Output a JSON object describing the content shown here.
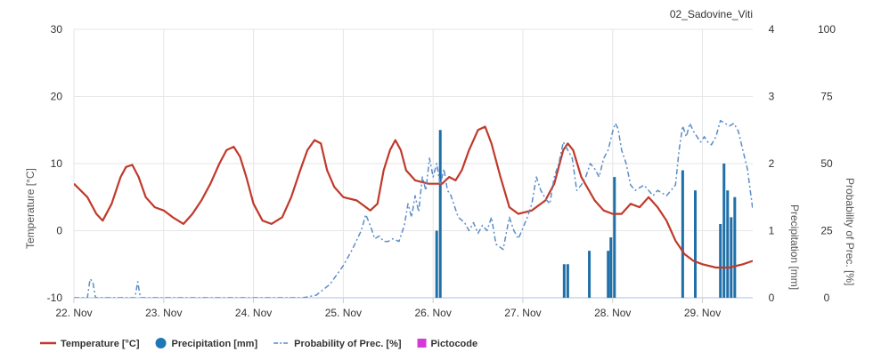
{
  "chart_data": {
    "type": "line",
    "title": "02_Sadovine_Viti",
    "x_categories": [
      "22. Nov",
      "23. Nov",
      "24. Nov",
      "25. Nov",
      "26. Nov",
      "27. Nov",
      "28. Nov",
      "29. Nov"
    ],
    "x_range_days": [
      0,
      7.56
    ],
    "axes": {
      "temperature": {
        "label": "Temperature [°C]",
        "range": [
          -10,
          30
        ],
        "ticks": [
          30,
          20,
          10,
          0,
          -10
        ]
      },
      "precipitation": {
        "label": "Precipitation [mm]",
        "range": [
          0,
          4
        ],
        "ticks": [
          4,
          3,
          2,
          1,
          0
        ]
      },
      "probability": {
        "label": "Probability of Prec. [%]",
        "range": [
          0,
          100
        ],
        "ticks": [
          100,
          75,
          50,
          25,
          0
        ]
      }
    },
    "grid": true,
    "legend": {
      "placement": "bottom-left",
      "entries": [
        {
          "label": "Temperature [°C]",
          "color": "#c0392b",
          "symbol": "line"
        },
        {
          "label": "Precipitation [mm]",
          "color": "#1f77b4",
          "symbol": "circle"
        },
        {
          "label": "Probability of Prec. [%]",
          "color": "#5b8cc8",
          "symbol": "dashdot"
        },
        {
          "label": "Pictocode",
          "color": "#d63ad6",
          "symbol": "square"
        }
      ]
    },
    "series": [
      {
        "name": "Temperature [°C]",
        "axis": "temperature",
        "color": "#c0392b",
        "points": [
          [
            0.0,
            7
          ],
          [
            0.15,
            5
          ],
          [
            0.25,
            2.5
          ],
          [
            0.32,
            1.5
          ],
          [
            0.42,
            4
          ],
          [
            0.52,
            8
          ],
          [
            0.58,
            9.5
          ],
          [
            0.65,
            9.8
          ],
          [
            0.72,
            8
          ],
          [
            0.8,
            5
          ],
          [
            0.9,
            3.5
          ],
          [
            1.0,
            3.0
          ],
          [
            1.1,
            2.0
          ],
          [
            1.22,
            1.0
          ],
          [
            1.32,
            2.5
          ],
          [
            1.42,
            4.5
          ],
          [
            1.52,
            7
          ],
          [
            1.62,
            10
          ],
          [
            1.7,
            12
          ],
          [
            1.78,
            12.5
          ],
          [
            1.85,
            11
          ],
          [
            1.92,
            8
          ],
          [
            2.0,
            4.0
          ],
          [
            2.1,
            1.5
          ],
          [
            2.2,
            1.0
          ],
          [
            2.32,
            2.0
          ],
          [
            2.42,
            5
          ],
          [
            2.52,
            9
          ],
          [
            2.6,
            12
          ],
          [
            2.68,
            13.5
          ],
          [
            2.75,
            13
          ],
          [
            2.82,
            9
          ],
          [
            2.9,
            6.5
          ],
          [
            3.0,
            5.0
          ],
          [
            3.15,
            4.5
          ],
          [
            3.3,
            3.0
          ],
          [
            3.38,
            4.0
          ],
          [
            3.45,
            9
          ],
          [
            3.52,
            12
          ],
          [
            3.58,
            13.5
          ],
          [
            3.64,
            12
          ],
          [
            3.7,
            9
          ],
          [
            3.8,
            7.5
          ],
          [
            3.95,
            7.0
          ],
          [
            4.1,
            7
          ],
          [
            4.18,
            8
          ],
          [
            4.25,
            7.5
          ],
          [
            4.32,
            9
          ],
          [
            4.4,
            12
          ],
          [
            4.5,
            15
          ],
          [
            4.58,
            15.5
          ],
          [
            4.65,
            13
          ],
          [
            4.75,
            8
          ],
          [
            4.85,
            3.5
          ],
          [
            4.95,
            2.5
          ],
          [
            5.1,
            3.0
          ],
          [
            5.25,
            4.5
          ],
          [
            5.35,
            7
          ],
          [
            5.45,
            12
          ],
          [
            5.5,
            13
          ],
          [
            5.56,
            12
          ],
          [
            5.65,
            8
          ],
          [
            5.8,
            4.5
          ],
          [
            5.9,
            3.0
          ],
          [
            6.0,
            2.5
          ],
          [
            6.1,
            2.5
          ],
          [
            6.2,
            4.0
          ],
          [
            6.3,
            3.5
          ],
          [
            6.4,
            5.0
          ],
          [
            6.5,
            3.5
          ],
          [
            6.6,
            1.5
          ],
          [
            6.7,
            -1.5
          ],
          [
            6.8,
            -3.5
          ],
          [
            6.9,
            -4.5
          ],
          [
            7.0,
            -5.0
          ],
          [
            7.15,
            -5.5
          ],
          [
            7.3,
            -5.5
          ],
          [
            7.45,
            -5.0
          ],
          [
            7.56,
            -4.5
          ]
        ]
      },
      {
        "name": "Probability of Prec. [%]",
        "axis": "probability",
        "color": "#5b8cc8",
        "points": [
          [
            0.0,
            0
          ],
          [
            0.15,
            0
          ],
          [
            0.18,
            7
          ],
          [
            0.21,
            6
          ],
          [
            0.24,
            0
          ],
          [
            0.68,
            0
          ],
          [
            0.71,
            6
          ],
          [
            0.74,
            0
          ],
          [
            2.55,
            0
          ],
          [
            2.7,
            1
          ],
          [
            2.85,
            5
          ],
          [
            3.0,
            12
          ],
          [
            3.1,
            18
          ],
          [
            3.2,
            25
          ],
          [
            3.25,
            31
          ],
          [
            3.3,
            27
          ],
          [
            3.35,
            22
          ],
          [
            3.4,
            23
          ],
          [
            3.45,
            21
          ],
          [
            3.5,
            21
          ],
          [
            3.55,
            22
          ],
          [
            3.62,
            21
          ],
          [
            3.68,
            27
          ],
          [
            3.72,
            35
          ],
          [
            3.76,
            30
          ],
          [
            3.8,
            38
          ],
          [
            3.84,
            32
          ],
          [
            3.88,
            45
          ],
          [
            3.92,
            40
          ],
          [
            3.96,
            52
          ],
          [
            4.0,
            45
          ],
          [
            4.04,
            50
          ],
          [
            4.08,
            42
          ],
          [
            4.12,
            48
          ],
          [
            4.16,
            40
          ],
          [
            4.2,
            38
          ],
          [
            4.28,
            30
          ],
          [
            4.35,
            28
          ],
          [
            4.4,
            25
          ],
          [
            4.45,
            28
          ],
          [
            4.5,
            24
          ],
          [
            4.55,
            27
          ],
          [
            4.6,
            25
          ],
          [
            4.65,
            30
          ],
          [
            4.7,
            20
          ],
          [
            4.78,
            18
          ],
          [
            4.85,
            30
          ],
          [
            4.9,
            25
          ],
          [
            4.95,
            22
          ],
          [
            5.0,
            26
          ],
          [
            5.05,
            30
          ],
          [
            5.1,
            35
          ],
          [
            5.15,
            45
          ],
          [
            5.2,
            40
          ],
          [
            5.25,
            37
          ],
          [
            5.3,
            35
          ],
          [
            5.35,
            45
          ],
          [
            5.4,
            50
          ],
          [
            5.45,
            58
          ],
          [
            5.5,
            55
          ],
          [
            5.55,
            52
          ],
          [
            5.6,
            40
          ],
          [
            5.65,
            42
          ],
          [
            5.7,
            45
          ],
          [
            5.75,
            50
          ],
          [
            5.8,
            48
          ],
          [
            5.85,
            45
          ],
          [
            5.9,
            52
          ],
          [
            5.95,
            55
          ],
          [
            6.0,
            62
          ],
          [
            6.03,
            65
          ],
          [
            6.06,
            63
          ],
          [
            6.1,
            55
          ],
          [
            6.15,
            50
          ],
          [
            6.2,
            42
          ],
          [
            6.25,
            40
          ],
          [
            6.3,
            41
          ],
          [
            6.35,
            42
          ],
          [
            6.4,
            40
          ],
          [
            6.45,
            38
          ],
          [
            6.5,
            40
          ],
          [
            6.55,
            39
          ],
          [
            6.6,
            38
          ],
          [
            6.65,
            40
          ],
          [
            6.7,
            42
          ],
          [
            6.74,
            55
          ],
          [
            6.78,
            64
          ],
          [
            6.82,
            60
          ],
          [
            6.86,
            65
          ],
          [
            6.9,
            62
          ],
          [
            6.94,
            60
          ],
          [
            6.98,
            58
          ],
          [
            7.02,
            60
          ],
          [
            7.06,
            58
          ],
          [
            7.1,
            57
          ],
          [
            7.15,
            60
          ],
          [
            7.2,
            66
          ],
          [
            7.25,
            65
          ],
          [
            7.3,
            64
          ],
          [
            7.35,
            65
          ],
          [
            7.4,
            62
          ],
          [
            7.45,
            55
          ],
          [
            7.5,
            48
          ],
          [
            7.56,
            33
          ]
        ]
      },
      {
        "name": "Precipitation [mm]",
        "axis": "precipitation",
        "type": "bar",
        "color": "#1f6fa8",
        "points": [
          [
            4.04,
            1.0
          ],
          [
            4.08,
            2.5
          ],
          [
            5.46,
            0.5
          ],
          [
            5.5,
            0.5
          ],
          [
            5.74,
            0.7
          ],
          [
            5.95,
            0.7
          ],
          [
            5.98,
            0.9
          ],
          [
            6.02,
            1.8
          ],
          [
            6.78,
            1.9
          ],
          [
            6.92,
            1.6
          ],
          [
            7.2,
            1.1
          ],
          [
            7.24,
            2.0
          ],
          [
            7.28,
            1.6
          ],
          [
            7.32,
            1.2
          ],
          [
            7.36,
            1.5
          ]
        ]
      }
    ]
  }
}
